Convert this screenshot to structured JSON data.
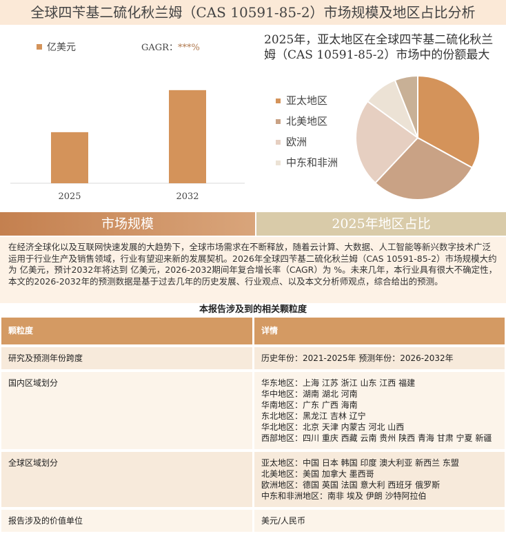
{
  "title": "全球四苄基二硫化秋兰姆（CAS 10591-85-2）市场规模及地区占比分析",
  "chart_data": [
    {
      "type": "bar",
      "legend": "亿美元",
      "gagr_label": "GAGR：",
      "gagr_value": "***%",
      "categories": [
        "2025",
        "2032"
      ],
      "values": [
        34,
        62
      ],
      "ylim": [
        0,
        100
      ],
      "color": "#d4935a"
    },
    {
      "type": "pie",
      "title": "2025年，亚太地区在全球四苄基二硫化秋兰姆（CAS 10591-85-2）市场中的份额最大",
      "categories": [
        "亚太地区",
        "北美地区",
        "欧洲",
        "中东和非洲",
        null
      ],
      "values": [
        33,
        29,
        23,
        9,
        6
      ],
      "colors": [
        "#d4935a",
        "#c9a285",
        "#e6cfc1",
        "#ece2d5",
        "#c8b096"
      ]
    }
  ],
  "sections": [
    "市场规模",
    "2025年地区占比"
  ],
  "paragraph": "在经济全球化以及互联网快速发展的大趋势下，全球市场需求在不断释放，随着云计算、大数据、人工智能等新兴数字技术广泛运用于行业生产及销售领域，行业有望迎来新的发展契机。2026年全球四苄基二硫化秋兰姆（CAS 10591-85-2）市场规模大约为 亿美元，预计2032年将达到 亿美元，2026-2032期间年复合增长率（CAGR）为 %。未来几年，本行业具有很大不确定性，本文的2026-2032年的预测数据是基于过去几年的历史发展、行业观点、以及本文分析师观点，综合给出的预测。",
  "table": {
    "title": "本报告涉及到的相关颗粒度",
    "header": [
      "颗粒度",
      "详情"
    ],
    "rows": [
      [
        "研究及预测年份跨度",
        [
          "历史年份：2021-2025年 预测年份：2026-2032年"
        ]
      ],
      [
        "国内区域划分",
        [
          "华东地区：上海 江苏 浙江 山东 江西 福建",
          "华中地区：湖南 湖北 河南",
          "华南地区：广东 广西 海南",
          "东北地区：黑龙江 吉林 辽宁",
          "华北地区：北京 天津 内蒙古 河北 山西",
          "西部地区：四川 重庆 西藏 云南 贵州 陕西 青海 甘肃 宁夏 新疆"
        ]
      ],
      [
        "全球区域划分",
        [
          "亚太地区：中国 日本 韩国 印度 澳大利亚 新西兰 东盟",
          "北美地区：美国 加拿大 墨西哥",
          "欧洲地区：德国 英国 法国 意大利 西班牙 俄罗斯",
          "中东和非洲地区：南非 埃及 伊朗 沙特阿拉伯"
        ]
      ],
      [
        "报告涉及的价值单位",
        [
          "美元/人民币"
        ]
      ]
    ]
  }
}
